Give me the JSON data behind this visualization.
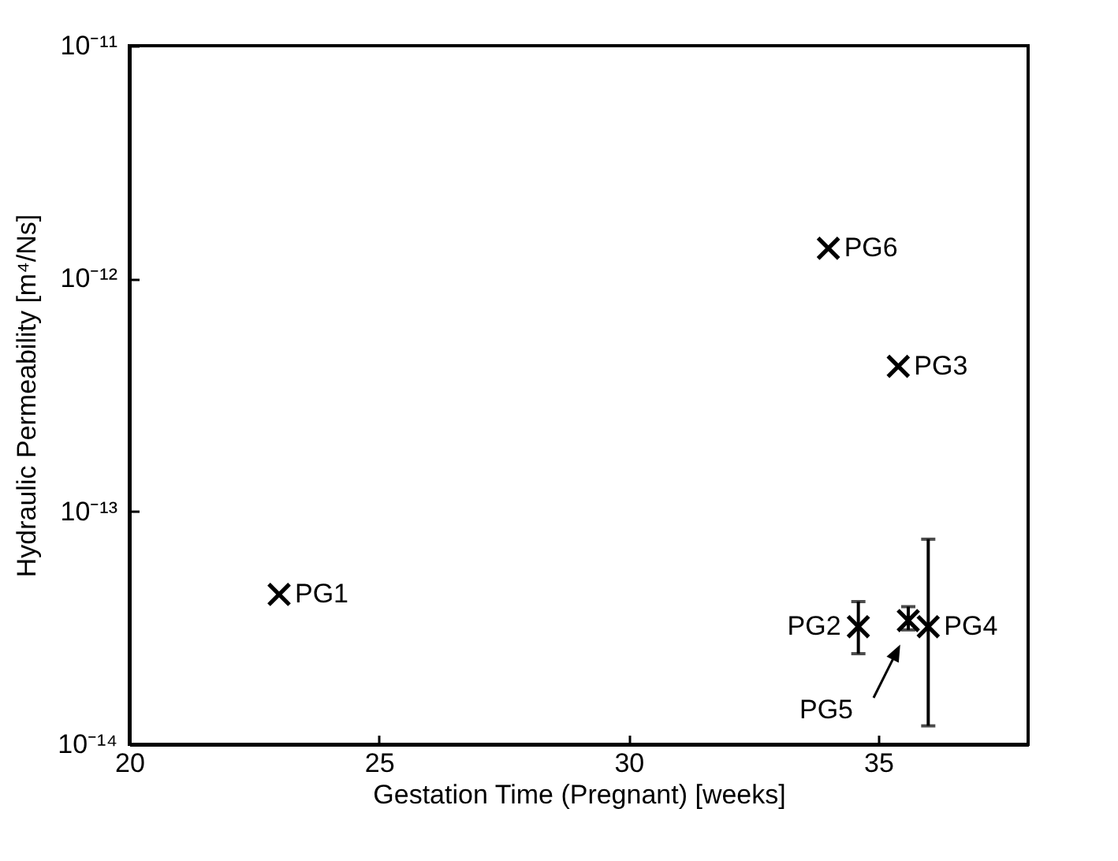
{
  "chart_data": {
    "type": "scatter",
    "xlabel": "Gestation Time (Pregnant) [weeks]",
    "ylabel": "Hydraulic Permeability [m⁴/Ns]",
    "x": [
      23,
      34,
      34.6,
      35.4,
      35.6,
      36
    ],
    "series": [
      {
        "color": "#000000",
        "values": [
          4.4e-14,
          1.35e-12,
          3.2e-14,
          4.2e-13,
          3.4e-14,
          3.2e-14
        ],
        "errors": [
          null,
          null,
          [
            2.45e-14,
            4.1e-14
          ],
          null,
          [
            3.1e-14,
            3.9e-14
          ],
          [
            1.2e-14,
            7.6e-14
          ]
        ]
      }
    ],
    "xlim": [
      20,
      38
    ],
    "xticks": [
      20,
      25,
      30,
      35
    ],
    "ylim": [
      1e-14,
      1e-11
    ],
    "log": "y",
    "yticks": [
      {
        "value": 1e-14,
        "label": "10⁻¹⁴"
      },
      {
        "value": 1e-13,
        "label": "10⁻¹³"
      },
      {
        "value": 1e-12,
        "label": "10⁻¹²"
      },
      {
        "value": 1e-11,
        "label": "10⁻¹¹"
      }
    ],
    "marker": "cross",
    "grid": false,
    "legend": false,
    "annotations": [
      {
        "text": "PG1",
        "x": 23,
        "y": 4.4e-14
      },
      {
        "text": "PG6",
        "x": 34,
        "y": 1.35e-12
      },
      {
        "text": "PG2",
        "x": 34.6,
        "y": 3.2e-14
      },
      {
        "text": "PG3",
        "x": 35.4,
        "y": 4.2e-13
      },
      "PG5",
      {
        "text": "PG4",
        "x": 36,
        "y": 3.2e-14
      }
    ]
  }
}
